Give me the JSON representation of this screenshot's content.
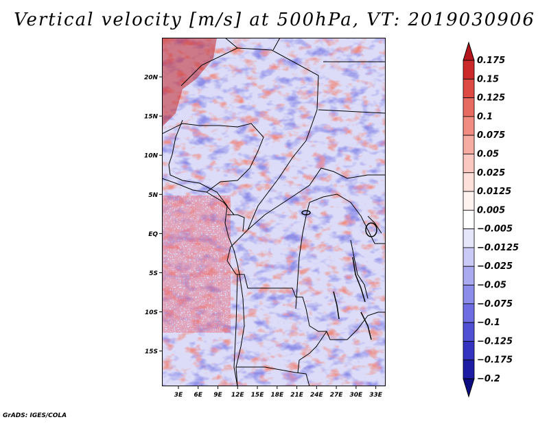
{
  "title": "Vertical velocity [m/s] at 500hPa, VT: 2019030906",
  "map": {
    "lat_labels": [
      "20N",
      "15N",
      "10N",
      "5N",
      "EQ",
      "5S",
      "10S",
      "15S"
    ],
    "lat_values": [
      20,
      15,
      10,
      5,
      0,
      -5,
      -10,
      -15
    ],
    "lon_labels": [
      "3E",
      "6E",
      "9E",
      "12E",
      "15E",
      "18E",
      "21E",
      "24E",
      "27E",
      "30E",
      "33E"
    ],
    "lon_values": [
      3,
      6,
      9,
      12,
      15,
      18,
      21,
      24,
      27,
      30,
      33
    ],
    "extent": {
      "lon_min": 0.5,
      "lon_max": 34.5,
      "lat_min": -19.5,
      "lat_max": 25
    }
  },
  "colorbar": {
    "labels": [
      "0.175",
      "0.15",
      "0.125",
      "0.1",
      "0.075",
      "0.05",
      "0.025",
      "0.0125",
      "0.005",
      "−0.005",
      "−0.0125",
      "−0.025",
      "−0.05",
      "−0.075",
      "−0.1",
      "−0.125",
      "−0.175",
      "−0.2"
    ],
    "colors": [
      "#b4141c",
      "#cc2a2a",
      "#dd4a44",
      "#e86b62",
      "#f08c82",
      "#f6aca2",
      "#fac8c0",
      "#fde0da",
      "#fff3f0",
      "#ffffff",
      "#e6e6fb",
      "#cacaf6",
      "#aaaaf0",
      "#8c8ceb",
      "#6e6ee2",
      "#5050d4",
      "#3434c0",
      "#1c1ca4",
      "#0c0c80"
    ]
  },
  "credit": "GrADS: IGES/COLA"
}
